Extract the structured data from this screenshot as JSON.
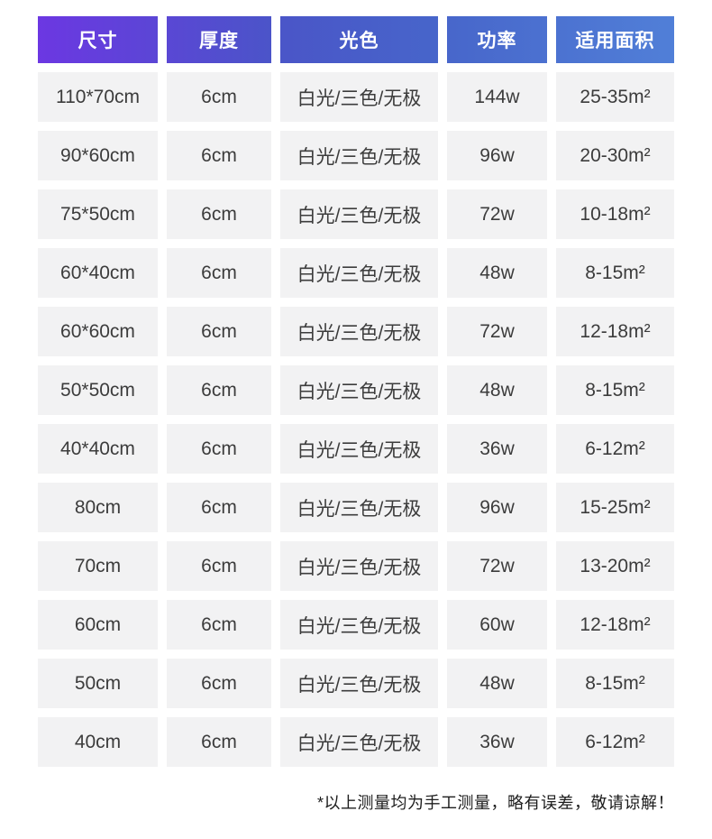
{
  "colors": {
    "header_gradient_left": "#6d36e3",
    "header_gradient_mid1": "#4a55c8",
    "header_gradient_mid2": "#4765ca",
    "header_gradient_right": "#5180d8",
    "cell_background": "#f2f2f3",
    "cell_text": "#3c3c3c",
    "header_text": "#ffffff",
    "page_background": "#ffffff"
  },
  "chart_data": {
    "type": "table",
    "columns": [
      "尺寸",
      "厚度",
      "光色",
      "功率",
      "适用面积"
    ],
    "rows": [
      [
        "110*70cm",
        "6cm",
        "白光/三色/无极",
        "144w",
        "25-35m²"
      ],
      [
        "90*60cm",
        "6cm",
        "白光/三色/无极",
        "96w",
        "20-30m²"
      ],
      [
        "75*50cm",
        "6cm",
        "白光/三色/无极",
        "72w",
        "10-18m²"
      ],
      [
        "60*40cm",
        "6cm",
        "白光/三色/无极",
        "48w",
        "8-15m²"
      ],
      [
        "60*60cm",
        "6cm",
        "白光/三色/无极",
        "72w",
        "12-18m²"
      ],
      [
        "50*50cm",
        "6cm",
        "白光/三色/无极",
        "48w",
        "8-15m²"
      ],
      [
        "40*40cm",
        "6cm",
        "白光/三色/无极",
        "36w",
        "6-12m²"
      ],
      [
        "80cm",
        "6cm",
        "白光/三色/无极",
        "96w",
        "15-25m²"
      ],
      [
        "70cm",
        "6cm",
        "白光/三色/无极",
        "72w",
        "13-20m²"
      ],
      [
        "60cm",
        "6cm",
        "白光/三色/无极",
        "60w",
        "12-18m²"
      ],
      [
        "50cm",
        "6cm",
        "白光/三色/无极",
        "48w",
        "8-15m²"
      ],
      [
        "40cm",
        "6cm",
        "白光/三色/无极",
        "36w",
        "6-12m²"
      ]
    ],
    "footnote": "*以上测量均为手工测量，略有误差，敬请谅解！"
  }
}
